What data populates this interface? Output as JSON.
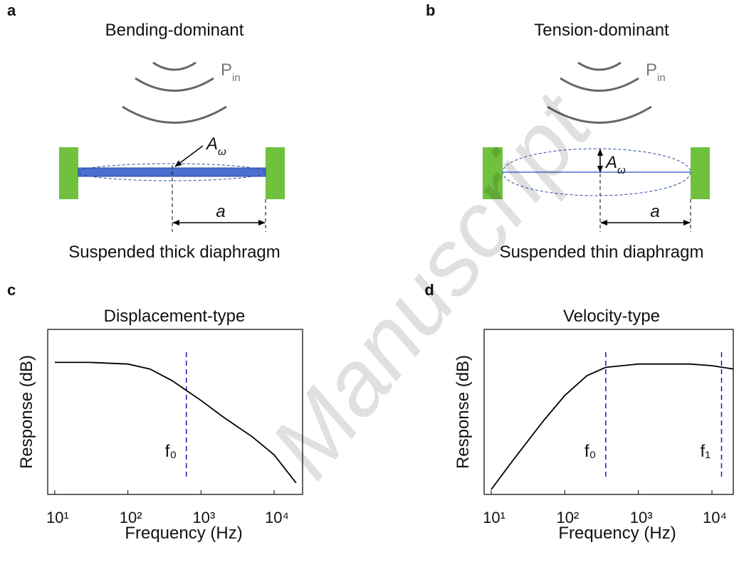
{
  "panels": {
    "a": {
      "label": "a",
      "title": "Bending-dominant",
      "pressure": {
        "main": "P",
        "sub": "in"
      },
      "amplitude": {
        "main": "A",
        "sub": "ω"
      },
      "dimension": "a",
      "caption": "Suspended thick diaphragm"
    },
    "b": {
      "label": "b",
      "title": "Tension-dominant",
      "pressure": {
        "main": "P",
        "sub": "in"
      },
      "amplitude": {
        "main": "A",
        "sub": "ω"
      },
      "dimension": "a",
      "caption": "Suspended thin diaphragm"
    }
  },
  "watermark": "Manuscript",
  "chart_data": [
    {
      "type": "line",
      "panel_label": "c",
      "title": "Displacement-type",
      "x_label": "Frequency (Hz)",
      "y_label": "Response (dB)",
      "xscale": "log",
      "xlim": [
        8,
        24500
      ],
      "ylim": [
        0,
        100
      ],
      "xticks": [
        {
          "value": 10,
          "label": "10¹"
        },
        {
          "value": 100,
          "label": "10²"
        },
        {
          "value": 1000,
          "label": "10³"
        },
        {
          "value": 10000,
          "label": "10⁴"
        }
      ],
      "x": [
        10,
        30,
        100,
        200,
        400,
        630,
        1000,
        2000,
        5000,
        10000,
        20000
      ],
      "values": [
        80,
        80,
        79,
        76,
        69,
        63,
        57,
        47,
        35,
        24,
        7
      ],
      "color": "#000000",
      "vlines": [
        {
          "x": 630,
          "label": "f₀"
        }
      ],
      "vline_color": "#1a1aa6"
    },
    {
      "type": "line",
      "panel_label": "d",
      "title": "Velocity-type",
      "x_label": "Frequency (Hz)",
      "y_label": "Response (dB)",
      "xscale": "log",
      "xlim": [
        8,
        19500
      ],
      "ylim": [
        0,
        100
      ],
      "xticks": [
        {
          "value": 10,
          "label": "10¹"
        },
        {
          "value": 100,
          "label": "10²"
        },
        {
          "value": 1000,
          "label": "10³"
        },
        {
          "value": 10000,
          "label": "10⁴"
        }
      ],
      "x": [
        10,
        20,
        50,
        100,
        200,
        360,
        1000,
        5000,
        10000,
        19500
      ],
      "values": [
        3,
        21,
        44,
        60,
        72,
        77,
        79,
        79,
        78,
        76
      ],
      "color": "#000000",
      "vlines": [
        {
          "x": 360,
          "label": "f₀"
        },
        {
          "x": 13500,
          "label": "f₁"
        }
      ],
      "vline_color": "#1a1aa6"
    }
  ]
}
